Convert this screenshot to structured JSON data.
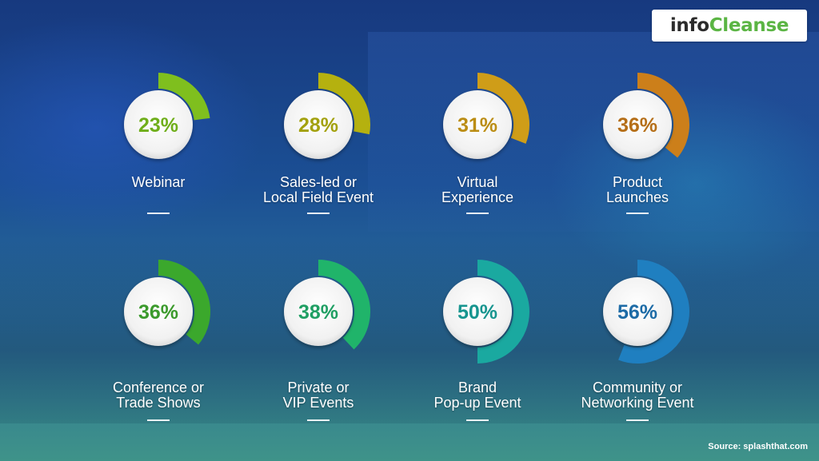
{
  "logo": {
    "part1": "info",
    "part2": "Cleanse"
  },
  "source": "Source: splashthat.com",
  "chart_data": {
    "type": "radial-bar",
    "unit": "%",
    "items": [
      {
        "lines": [
          "Webinar"
        ],
        "value": 23,
        "ring_color": "#7fbf1e",
        "text_color": "#6fae1a"
      },
      {
        "lines": [
          "Sales-led or",
          "Local Field Event"
        ],
        "value": 28,
        "ring_color": "#b5b10f",
        "text_color": "#a3a10e"
      },
      {
        "lines": [
          "Virtual",
          "Experience"
        ],
        "value": 31,
        "ring_color": "#cf9d18",
        "text_color": "#bb8d14"
      },
      {
        "lines": [
          "Product",
          "Launches"
        ],
        "value": 36,
        "ring_color": "#cc7f1a",
        "text_color": "#b56e17"
      },
      {
        "lines": [
          "Conference or",
          "Trade Shows"
        ],
        "value": 36,
        "ring_color": "#3ba82c",
        "text_color": "#3b9a2c"
      },
      {
        "lines": [
          "Private or",
          "VIP Events"
        ],
        "value": 38,
        "ring_color": "#20b46a",
        "text_color": "#1f9f63"
      },
      {
        "lines": [
          "Brand",
          "Pop-up Event"
        ],
        "value": 50,
        "ring_color": "#1aa9a0",
        "text_color": "#17958f"
      },
      {
        "lines": [
          "Community or",
          "Networking Event"
        ],
        "value": 56,
        "ring_color": "#1f7fc0",
        "text_color": "#1d6ba6"
      }
    ]
  }
}
